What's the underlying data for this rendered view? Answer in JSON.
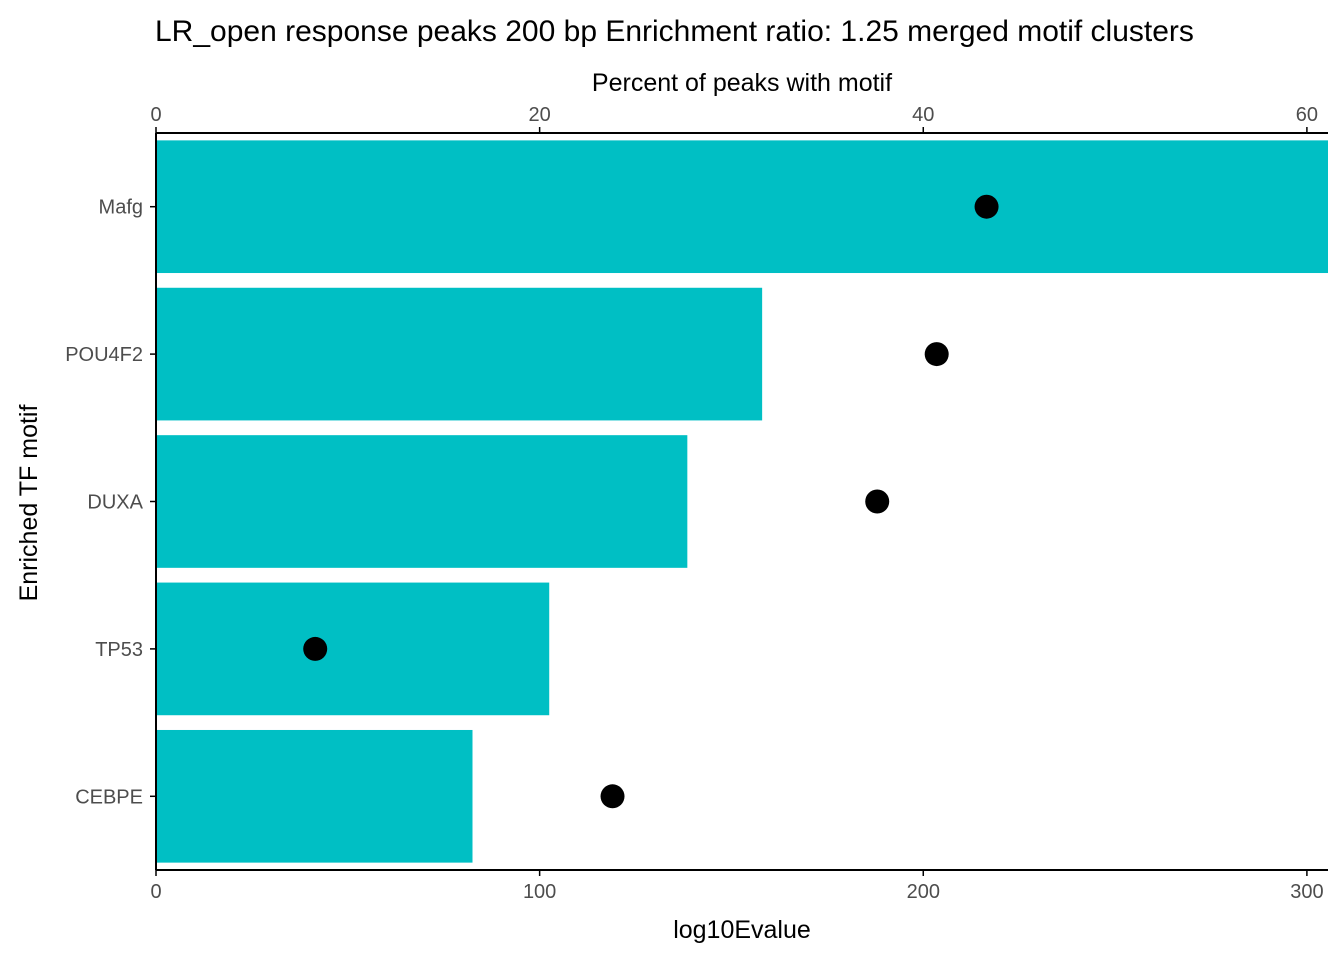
{
  "chart_data": {
    "type": "bar",
    "title": "LR_open response peaks 200 bp Enrichment ratio: 1.25  merged motif clusters",
    "categories": [
      "Mafg",
      "POU4F2",
      "DUXA",
      "TP53",
      "CEBPE"
    ],
    "series": [
      {
        "values": [
          305.5,
          158,
          138.5,
          102.5,
          82.5
        ]
      },
      {
        "values": [
          43.3,
          40.7,
          37.6,
          8.3,
          23.8
        ]
      }
    ],
    "xlabel_bottom": "log10Evalue",
    "xlabel_top": "Percent of peaks with motif",
    "ylabel": "Enriched TF motif",
    "xlim_bottom": [
      0,
      305.5
    ],
    "xlim_top": [
      0,
      61.1
    ],
    "xticks_bottom": [
      0,
      100,
      200,
      300
    ],
    "xticks_top": [
      0,
      20,
      40,
      60
    ],
    "grid": false,
    "legend": "none",
    "colors": {
      "bar": "#00BFC4",
      "point": "#000000",
      "axis": "#000000",
      "tick_text": "#4d4d4d"
    }
  }
}
